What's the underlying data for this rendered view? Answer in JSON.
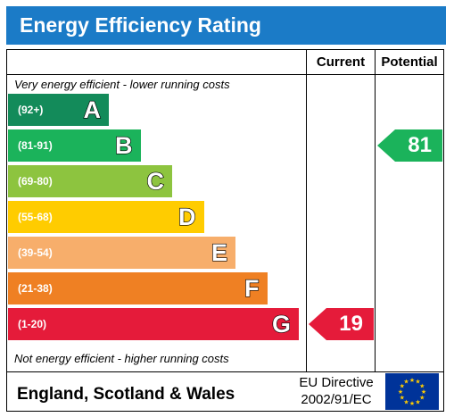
{
  "header": {
    "title": "Energy Efficiency Rating"
  },
  "columns": {
    "current": "Current",
    "potential": "Potential"
  },
  "captions": {
    "top": "Very energy efficient - lower running costs",
    "bottom": "Not energy efficient - higher running costs"
  },
  "footer": {
    "region": "England, Scotland & Wales",
    "directive_line1": "EU Directive",
    "directive_line2": "2002/91/EC",
    "flag_icon": "eu-flag-icon"
  },
  "chart_data": {
    "type": "bar",
    "title": "Energy Efficiency Rating",
    "bands": [
      {
        "letter": "A",
        "range": "(92+)",
        "color": "#138b5a"
      },
      {
        "letter": "B",
        "range": "(81-91)",
        "color": "#1bb35b"
      },
      {
        "letter": "C",
        "range": "(69-80)",
        "color": "#8dc43f"
      },
      {
        "letter": "D",
        "range": "(55-68)",
        "color": "#ffcc00"
      },
      {
        "letter": "E",
        "range": "(39-54)",
        "color": "#f7ae6b"
      },
      {
        "letter": "F",
        "range": "(21-38)",
        "color": "#ef8023"
      },
      {
        "letter": "G",
        "range": "(1-20)",
        "color": "#e51b3a"
      }
    ],
    "current": {
      "value": 19,
      "band": "G",
      "color": "#e51b3a"
    },
    "potential": {
      "value": 81,
      "band": "B",
      "color": "#1bb35b"
    }
  }
}
